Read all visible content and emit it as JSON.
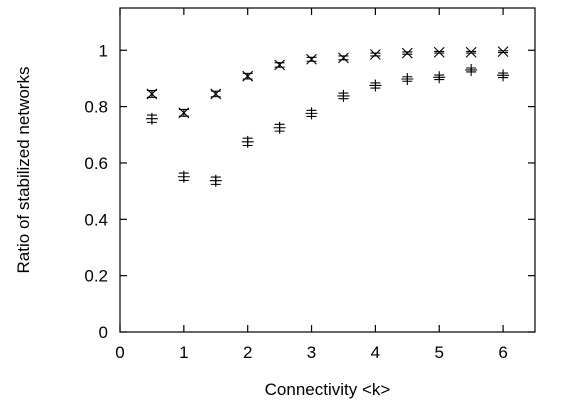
{
  "chart_data": {
    "type": "scatter",
    "title": "",
    "xlabel": "Connectivity <k>",
    "ylabel": "Ratio of stabilized networks",
    "xlim": [
      0,
      6.5
    ],
    "ylim": [
      0,
      1.15
    ],
    "xticks": [
      0,
      1,
      2,
      3,
      4,
      5,
      6
    ],
    "yticks": [
      0,
      0.2,
      0.4,
      0.6,
      0.8,
      1
    ],
    "xtick_labels": [
      "0",
      "1",
      "2",
      "3",
      "4",
      "5",
      "6"
    ],
    "ytick_labels": [
      "0",
      "0.2",
      "0.4",
      "0.6",
      "0.8",
      "1"
    ],
    "grid": false,
    "legend": "none",
    "series": [
      {
        "marker": "cross",
        "x": [
          0.5,
          1.0,
          1.5,
          2.0,
          2.5,
          3.0,
          3.5,
          4.0,
          4.5,
          5.0,
          5.5,
          6.0
        ],
        "y": [
          0.845,
          0.778,
          0.845,
          0.908,
          0.948,
          0.968,
          0.973,
          0.985,
          0.99,
          0.993,
          0.993,
          0.995
        ],
        "err": [
          0.012,
          0.012,
          0.01,
          0.01,
          0.008,
          0.007,
          0.007,
          0.005,
          0.004,
          0.003,
          0.003,
          0.003
        ]
      },
      {
        "marker": "plus",
        "x": [
          0.5,
          1.0,
          1.5,
          2.0,
          2.5,
          3.0,
          3.5,
          4.0,
          4.5,
          5.0,
          5.5,
          6.0
        ],
        "y": [
          0.757,
          0.551,
          0.537,
          0.675,
          0.725,
          0.776,
          0.838,
          0.875,
          0.898,
          0.904,
          0.93,
          0.911
        ],
        "err": [
          0.013,
          0.013,
          0.013,
          0.013,
          0.012,
          0.011,
          0.01,
          0.009,
          0.008,
          0.008,
          0.007,
          0.008
        ]
      }
    ]
  }
}
